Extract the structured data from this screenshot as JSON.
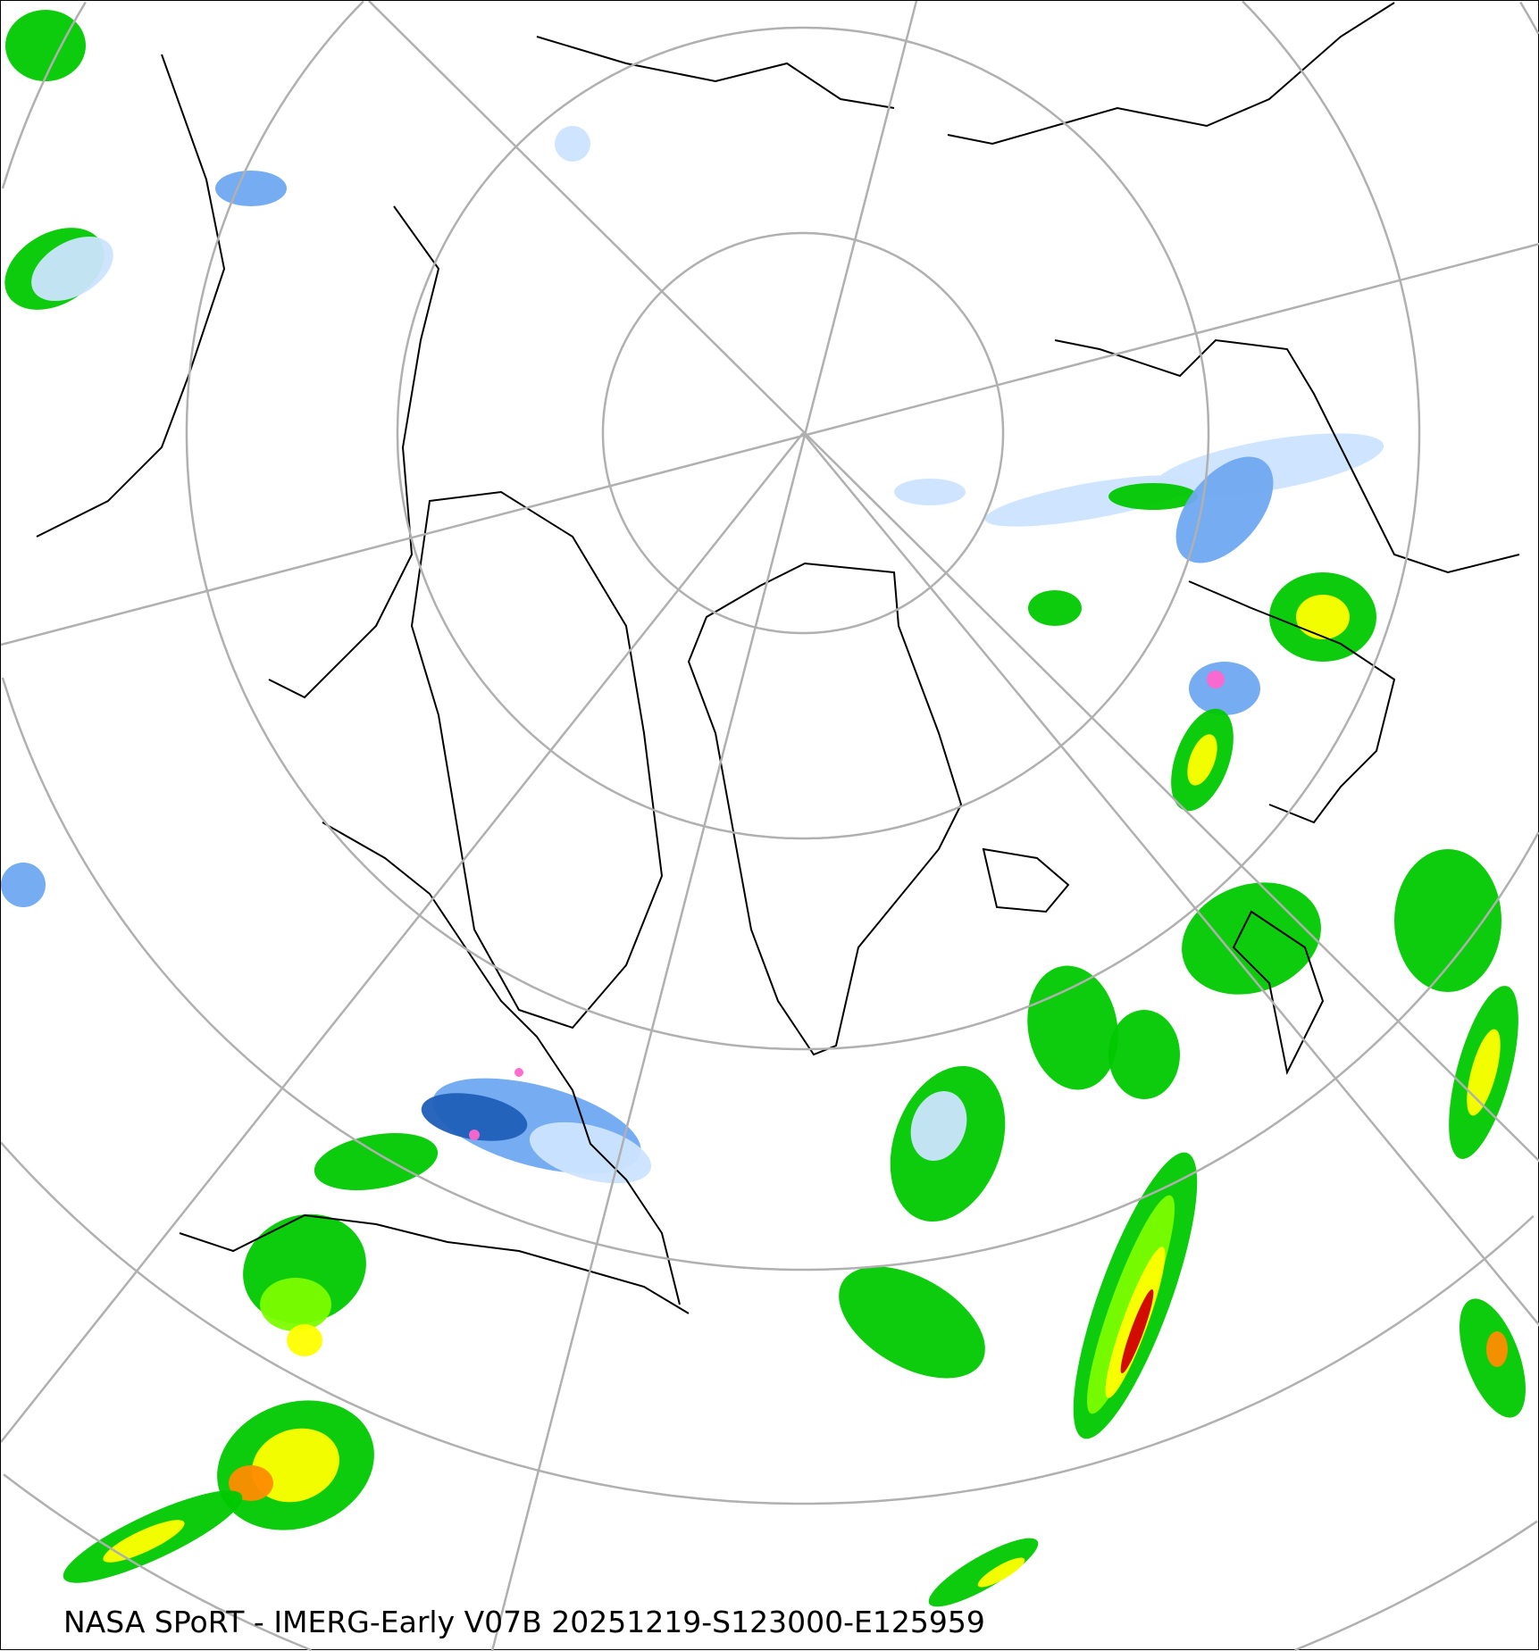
{
  "caption": "NASA SPoRT - IMERG-Early V07B 20251219-S123000-E125959",
  "map": {
    "projection": "north-polar-stereographic",
    "graticule_color": "#b0b0b0",
    "coastline_color": "#000000",
    "precip_colors": {
      "light_snow": "#cce4ff",
      "snow": "#6fa8f0",
      "heavy_snow": "#1f5fb8",
      "light_rain": "#00c800",
      "rain": "#7cfc00",
      "moderate_rain": "#ffff00",
      "heavy_rain": "#ff8c00",
      "very_heavy_rain": "#d00000",
      "mixed": "#ff66cc"
    }
  }
}
